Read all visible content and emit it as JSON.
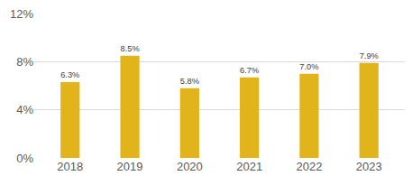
{
  "chart_data": {
    "type": "bar",
    "categories": [
      "2018",
      "2019",
      "2020",
      "2021",
      "2022",
      "2023"
    ],
    "values": [
      6.3,
      8.5,
      5.8,
      6.7,
      7.0,
      7.9
    ],
    "value_labels": [
      "6.3%",
      "8.5%",
      "5.8%",
      "6.7%",
      "7.0%",
      "7.9%"
    ],
    "color": "#e2b41c",
    "ylim": [
      0,
      12
    ],
    "yticks": [
      {
        "value": 0,
        "label": "0%"
      },
      {
        "value": 4,
        "label": "4%"
      },
      {
        "value": 8,
        "label": "8%"
      },
      {
        "value": 12,
        "label": "12%"
      }
    ],
    "grid": true,
    "data_labels": true
  }
}
